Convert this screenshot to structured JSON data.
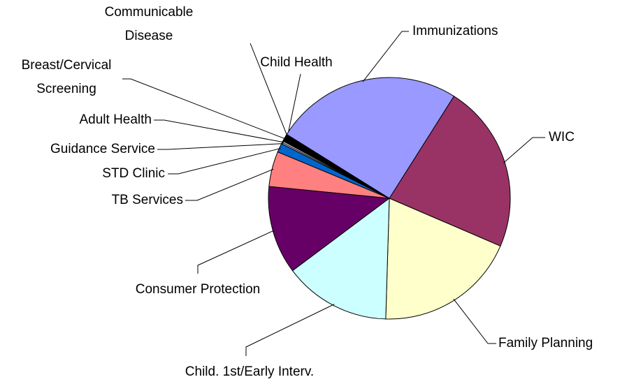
{
  "chart_data": {
    "type": "pie",
    "categories": [
      "WIC",
      "Family Planning",
      "Child. 1st/Early Interv.",
      "Consumer Protection",
      "TB Services",
      "STD Clinic",
      "Guidance Service",
      "Adult Health",
      "Breast/Cervical Screening",
      "Communicable Disease",
      "Child Health",
      "Immunizations"
    ],
    "values": [
      22.5,
      19.0,
      14.3,
      11.8,
      4.7,
      1.2,
      0.2,
      0.2,
      0.8,
      0.1,
      0.1,
      25.1
    ],
    "colors": [
      "#993366",
      "#ffffcc",
      "#ccffff",
      "#660066",
      "#ff8080",
      "#0066cc",
      "#ccccff",
      "#ffffff",
      "#000000",
      "#c0c0c0",
      "#ffffff",
      "#9999ff"
    ]
  }
}
